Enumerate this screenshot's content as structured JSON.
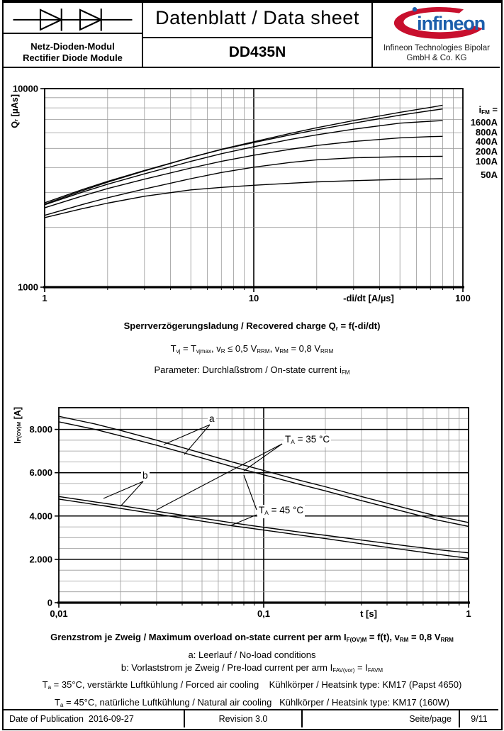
{
  "header": {
    "title": "Datenblatt / Data sheet",
    "part_number": "DD435N",
    "module_name_de": "Netz-Dioden-Modul",
    "module_name_en": "Rectifier Diode Module",
    "logo_text": "infineon",
    "logo_blue": "#1B5EAB",
    "logo_red": "#C8102E",
    "company_line1": "Infineon Technologies Bipolar",
    "company_line2": "GmbH & Co. KG"
  },
  "chart_data": [
    {
      "type": "line",
      "title": "Sperrverzögerungsladung / Recovered charge Qr = f(-di/dt)",
      "xscale": "log",
      "yscale": "log",
      "xlim": [
        1,
        100
      ],
      "ylim": [
        1000,
        10000
      ],
      "grid": "on",
      "legend_position": "right",
      "xlabel": "-di/dt [A/µs]",
      "ylabel": "Q~r~ [µAs]",
      "legend_title": "i~FM~ =",
      "x_ticks": [
        {
          "v": 1,
          "label": "1"
        },
        {
          "v": 10,
          "label": "10"
        },
        {
          "v": 100,
          "label": "100"
        }
      ],
      "y_ticks": [
        {
          "v": 1000,
          "label": "1000"
        },
        {
          "v": 10000,
          "label": "10000"
        }
      ],
      "x": [
        1,
        1.5,
        2,
        3,
        5,
        7,
        10,
        15,
        20,
        30,
        50,
        70,
        80
      ],
      "series": [
        {
          "name": "1600A",
          "y": [
            2620,
            3050,
            3380,
            3850,
            4500,
            4950,
            5400,
            5950,
            6350,
            6900,
            7600,
            8050,
            8250
          ]
        },
        {
          "name": "800A",
          "y": [
            2660,
            3090,
            3410,
            3870,
            4500,
            4930,
            5350,
            5850,
            6200,
            6700,
            7350,
            7750,
            7900
          ]
        },
        {
          "name": "400A",
          "y": [
            2600,
            3000,
            3300,
            3720,
            4300,
            4700,
            5100,
            5550,
            5850,
            6250,
            6700,
            6850,
            6900
          ]
        },
        {
          "name": "200A",
          "y": [
            2510,
            2870,
            3140,
            3500,
            3980,
            4300,
            4620,
            4950,
            5170,
            5420,
            5650,
            5730,
            5750
          ]
        },
        {
          "name": "100A",
          "y": [
            2300,
            2600,
            2820,
            3120,
            3520,
            3780,
            4020,
            4250,
            4380,
            4480,
            4540,
            4555,
            4560
          ]
        },
        {
          "name": "50A",
          "y": [
            2240,
            2480,
            2650,
            2870,
            3090,
            3180,
            3260,
            3340,
            3390,
            3440,
            3490,
            3510,
            3520
          ]
        }
      ]
    },
    {
      "type": "line",
      "title": "Grenzstrom je Zweig / Maximum overload on-state current per arm IF(OV)M = f(t)",
      "xscale": "log",
      "yscale": "linear",
      "xlim": [
        0.01,
        1
      ],
      "ylim": [
        0,
        9000
      ],
      "y_major_step": 2000,
      "y_minor_step": 500,
      "grid": "on",
      "xlabel": "t [s]",
      "ylabel": "I~F(OV)M~ [A]",
      "x_ticks": [
        {
          "v": 0.01,
          "label": "0,01"
        },
        {
          "v": 0.1,
          "label": "0,1"
        },
        {
          "v": 1,
          "label": "1"
        }
      ],
      "y_ticks": [
        {
          "v": 0,
          "label": "0"
        },
        {
          "v": 2000,
          "label": "2.000"
        },
        {
          "v": 4000,
          "label": "4.000"
        },
        {
          "v": 6000,
          "label": "6.000"
        },
        {
          "v": 8000,
          "label": "8.000"
        }
      ],
      "x": [
        0.01,
        0.015,
        0.02,
        0.03,
        0.05,
        0.07,
        0.1,
        0.15,
        0.2,
        0.3,
        0.5,
        0.7,
        1
      ],
      "series": [
        {
          "name": "a TA=35°C",
          "y": [
            8600,
            8250,
            7950,
            7500,
            6900,
            6500,
            6100,
            5650,
            5350,
            4900,
            4350,
            4000,
            3700
          ]
        },
        {
          "name": "a TA=45°C",
          "y": [
            8350,
            8000,
            7700,
            7270,
            6680,
            6280,
            5900,
            5460,
            5160,
            4710,
            4170,
            3820,
            3520
          ]
        },
        {
          "name": "b TA=35°C",
          "y": [
            4900,
            4650,
            4480,
            4220,
            3900,
            3690,
            3480,
            3260,
            3110,
            2890,
            2620,
            2450,
            2300
          ]
        },
        {
          "name": "b TA=45°C",
          "y": [
            4780,
            4530,
            4350,
            4090,
            3760,
            3550,
            3350,
            3120,
            2960,
            2720,
            2430,
            2240,
            2050
          ]
        }
      ],
      "annotations": [
        {
          "text": "a",
          "left": 293,
          "top": 583,
          "lines": [
            [
              296,
              599,
              231,
              627
            ],
            [
              296,
              599,
              260,
              641
            ]
          ]
        },
        {
          "text": "b",
          "left": 199,
          "top": 663,
          "lines": [
            [
              202,
              679,
              146,
              703
            ],
            [
              202,
              679,
              170,
              714
            ]
          ]
        },
        {
          "text": "T~A~ = 35 °C",
          "left": 400,
          "top": 612,
          "lines": [
            [
              398,
              626,
              344,
              664
            ],
            [
              398,
              626,
              221,
              719
            ]
          ]
        },
        {
          "text": "T~A~ = 45 °C",
          "left": 363,
          "top": 712,
          "lines": [
            [
              362,
              719,
              344,
              670
            ],
            [
              362,
              726,
              326,
              741
            ]
          ]
        }
      ]
    }
  ],
  "captions1": {
    "line1": "Sperrverzögerungsladung / Recovered charge Q~r~ = f(-di/dt)",
    "line2": "T~vj~ = T~vjmax~, v~R~ ≤ 0,5 V~RRM~, v~RM~ = 0,8 V~RRM~",
    "line3": "Parameter: Durchlaßstrom / On-state current i~FM~"
  },
  "captions2": {
    "line1": "Grenzstrom je Zweig / Maximum overload on-state current per arm I~F(OV)M~ = f(t), v~RM~ = 0,8 V~RRM~",
    "line2": "a: Leerlauf / No-load conditions",
    "line3": "b: Vorlaststrom je Zweig / Pre-load current per arm I~FAV(vor)~ = I~FAVM~",
    "line4": "T~a~ = 35°C, verstärkte Luftkühlung / Forced air cooling    Kühlkörper / Heatsink type: KM17 (Papst 4650)",
    "line5": "T~a~ = 45°C, natürliche Luftkühlung / Natural air cooling   Kühlkörper / Heatsink type: KM17 (160W)"
  },
  "footer": {
    "date_label": "Date of Publication  2016-09-27",
    "revision": "Revision 3.0",
    "page_label": "Seite/page",
    "page_number": "9/11"
  }
}
